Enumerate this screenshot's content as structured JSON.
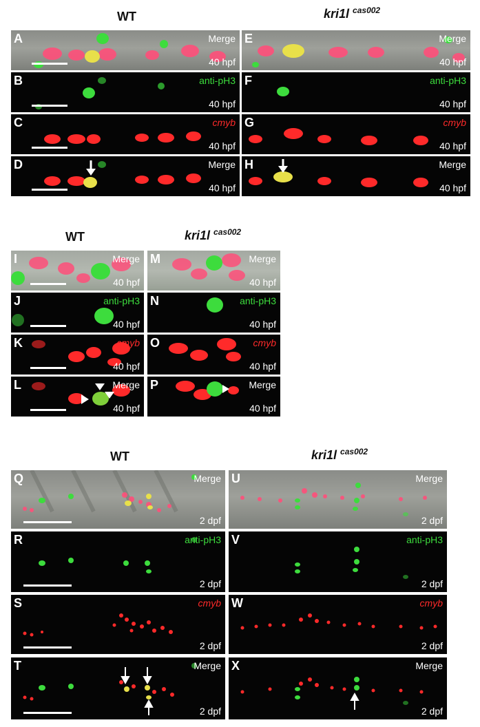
{
  "headers": {
    "top_wt": "WT",
    "top_mut_gene": "kri1l",
    "top_mut_allele": "cas002",
    "mid_wt": "WT",
    "mid_mut_gene": "kri1l",
    "mid_mut_allele": "cas002",
    "bot_wt": "WT",
    "bot_mut_gene": "kri1l",
    "bot_mut_allele": "cas002"
  },
  "channels": {
    "merge": "Merge",
    "ph3": "anti-pH3",
    "cmyb": "cmyb"
  },
  "stages": {
    "h40": "40 hpf",
    "d2": "2 dpf"
  },
  "panel_letters": {
    "A": "A",
    "B": "B",
    "C": "C",
    "D": "D",
    "E": "E",
    "F": "F",
    "G": "G",
    "H": "H",
    "I": "I",
    "J": "J",
    "K": "K",
    "L": "L",
    "M": "M",
    "N": "N",
    "O": "O",
    "P": "P",
    "Q": "Q",
    "R": "R",
    "S": "S",
    "T": "T",
    "U": "U",
    "V": "V",
    "W": "W",
    "X": "X"
  },
  "colors": {
    "merge_label": "#ffffff",
    "ph3_green": "#3ddc3d",
    "cmyb_red": "#ff2a2a",
    "colocalized_yellow": "#e8e04a"
  }
}
